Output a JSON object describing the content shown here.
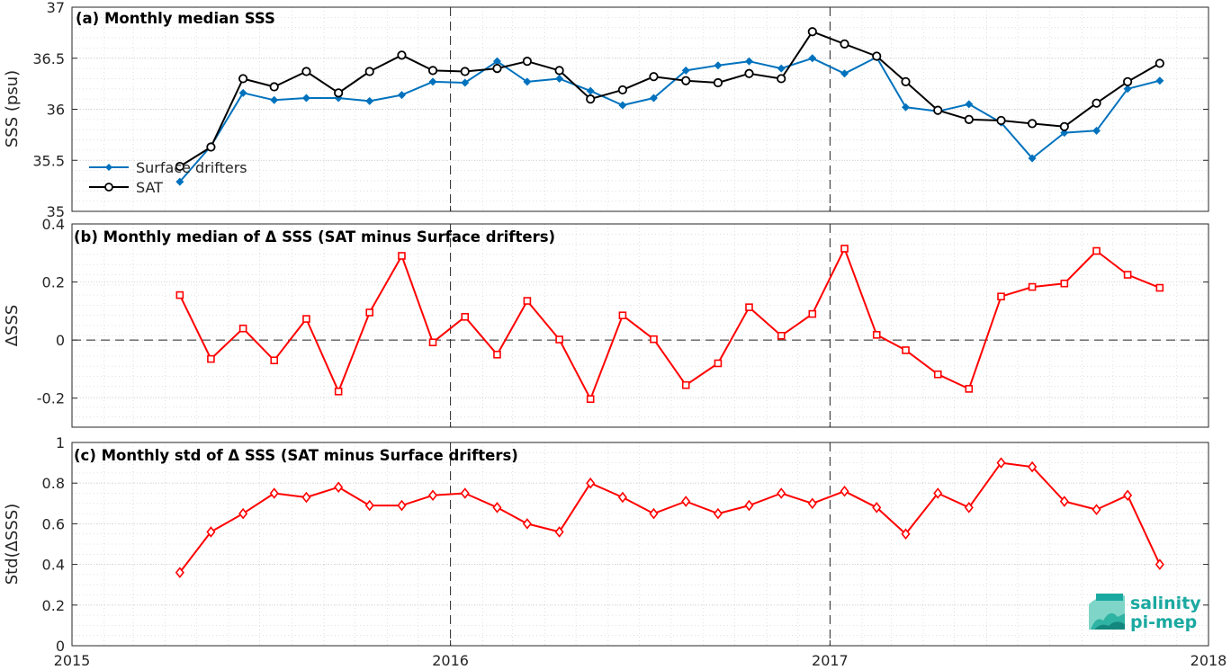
{
  "colors": {
    "drifters": "#0072BD",
    "sat": "#000000",
    "delta": "#FF0000",
    "logo": "#1aa9a0"
  },
  "logo": {
    "line1": "salinity",
    "line2": "pi-mep"
  },
  "chart_data": [
    {
      "type": "line",
      "title": "(a) Monthly median SSS",
      "ylabel": "SSS (psu)",
      "xlim": [
        "2015-01-01",
        "2018-01-01"
      ],
      "ylim": [
        35,
        37
      ],
      "yticks": [
        "35",
        "35.5",
        "36",
        "36.5",
        "37"
      ],
      "xticks": [
        "2015",
        "2016",
        "2017",
        "2018"
      ],
      "grid": true,
      "legend": "left",
      "x": [
        "2015-04-15",
        "2015-05-15",
        "2015-06-15",
        "2015-07-15",
        "2015-08-15",
        "2015-09-15",
        "2015-10-15",
        "2015-11-15",
        "2015-12-15",
        "2016-01-15",
        "2016-02-15",
        "2016-03-15",
        "2016-04-15",
        "2016-05-15",
        "2016-06-15",
        "2016-07-15",
        "2016-08-15",
        "2016-09-15",
        "2016-10-15",
        "2016-11-15",
        "2016-12-15",
        "2017-01-15",
        "2017-02-15",
        "2017-03-15",
        "2017-04-15",
        "2017-05-15",
        "2017-06-15",
        "2017-07-15",
        "2017-08-15",
        "2017-09-15",
        "2017-10-15",
        "2017-11-15"
      ],
      "series": [
        {
          "name": "Surface drifters",
          "marker": "diamond-filled",
          "values": [
            35.29,
            35.64,
            36.16,
            36.09,
            36.11,
            36.11,
            36.08,
            36.14,
            36.27,
            36.26,
            36.47,
            36.27,
            36.3,
            36.18,
            36.04,
            36.11,
            36.38,
            36.43,
            36.47,
            36.4,
            36.5,
            36.35,
            36.51,
            36.02,
            35.98,
            36.05,
            35.87,
            35.52,
            35.77,
            35.79,
            36.2,
            36.28
          ]
        },
        {
          "name": "SAT",
          "marker": "circle-open",
          "values": [
            35.44,
            35.63,
            36.3,
            36.22,
            36.37,
            36.16,
            36.37,
            36.53,
            36.38,
            36.37,
            36.4,
            36.47,
            36.38,
            36.1,
            36.19,
            36.32,
            36.28,
            36.26,
            36.35,
            36.3,
            36.76,
            36.64,
            36.52,
            36.27,
            35.99,
            35.9,
            35.89,
            35.86,
            35.83,
            36.06,
            36.27,
            36.45
          ]
        }
      ]
    },
    {
      "type": "line",
      "title": "(b) Monthly median of Δ SSS (SAT minus Surface drifters)",
      "ylabel": "ΔSSS",
      "xlim": [
        "2015-01-01",
        "2018-01-01"
      ],
      "ylim": [
        -0.3,
        0.4
      ],
      "yticks": [
        "-0.2",
        "0",
        "0.2",
        "0.4"
      ],
      "grid": true,
      "x": [
        "2015-04-15",
        "2015-05-15",
        "2015-06-15",
        "2015-07-15",
        "2015-08-15",
        "2015-09-15",
        "2015-10-15",
        "2015-11-15",
        "2015-12-15",
        "2016-01-15",
        "2016-02-15",
        "2016-03-15",
        "2016-04-15",
        "2016-05-15",
        "2016-06-15",
        "2016-07-15",
        "2016-08-15",
        "2016-09-15",
        "2016-10-15",
        "2016-11-15",
        "2016-12-15",
        "2017-01-15",
        "2017-02-15",
        "2017-03-15",
        "2017-04-15",
        "2017-05-15",
        "2017-06-15",
        "2017-07-15",
        "2017-08-15",
        "2017-09-15",
        "2017-10-15",
        "2017-11-15"
      ],
      "series": [
        {
          "marker": "square-open",
          "values": [
            0.155,
            -0.065,
            0.04,
            -0.07,
            0.073,
            -0.177,
            0.095,
            0.29,
            -0.008,
            0.08,
            -0.05,
            0.135,
            0.002,
            -0.203,
            0.085,
            0.003,
            -0.155,
            -0.08,
            0.113,
            0.015,
            0.09,
            0.315,
            0.018,
            -0.035,
            -0.118,
            -0.168,
            0.15,
            0.183,
            0.195,
            0.307,
            0.225,
            0.18
          ]
        }
      ]
    },
    {
      "type": "line",
      "title": "(c) Monthly std of Δ SSS (SAT minus Surface drifters)",
      "ylabel": "Std(ΔSSS)",
      "xlim": [
        "2015-01-01",
        "2018-01-01"
      ],
      "ylim": [
        0,
        1
      ],
      "yticks": [
        "0",
        "0.2",
        "0.4",
        "0.6",
        "0.8",
        "1"
      ],
      "xticks": [
        "2015",
        "2016",
        "2017",
        "2018"
      ],
      "grid": true,
      "x": [
        "2015-04-15",
        "2015-05-15",
        "2015-06-15",
        "2015-07-15",
        "2015-08-15",
        "2015-09-15",
        "2015-10-15",
        "2015-11-15",
        "2015-12-15",
        "2016-01-15",
        "2016-02-15",
        "2016-03-15",
        "2016-04-15",
        "2016-05-15",
        "2016-06-15",
        "2016-07-15",
        "2016-08-15",
        "2016-09-15",
        "2016-10-15",
        "2016-11-15",
        "2016-12-15",
        "2017-01-15",
        "2017-02-15",
        "2017-03-15",
        "2017-04-15",
        "2017-05-15",
        "2017-06-15",
        "2017-07-15",
        "2017-08-15",
        "2017-09-15",
        "2017-10-15",
        "2017-11-15"
      ],
      "series": [
        {
          "marker": "diamond-open",
          "values": [
            0.36,
            0.56,
            0.65,
            0.75,
            0.73,
            0.78,
            0.69,
            0.69,
            0.74,
            0.75,
            0.68,
            0.6,
            0.56,
            0.8,
            0.73,
            0.65,
            0.71,
            0.65,
            0.69,
            0.75,
            0.7,
            0.76,
            0.68,
            0.55,
            0.75,
            0.68,
            0.9,
            0.88,
            0.71,
            0.67,
            0.74,
            0.4
          ]
        }
      ]
    }
  ]
}
